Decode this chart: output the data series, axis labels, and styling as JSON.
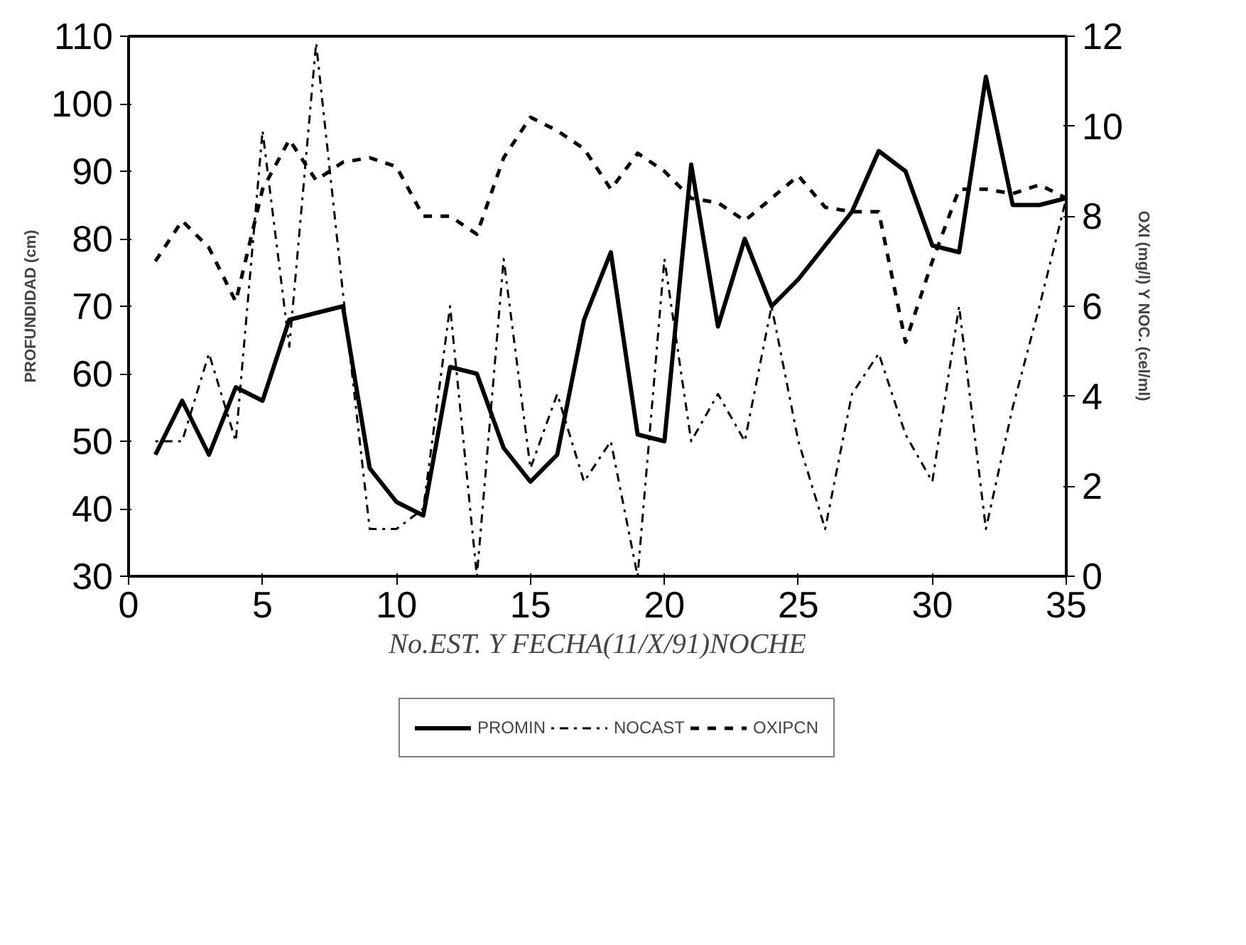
{
  "chart_data": {
    "type": "line",
    "xlabel": "No.EST. Y FECHA(11/X/91)NOCHE",
    "ylabel": "PROFUNDIDAD (cm)",
    "y2label": "OXI (mg/l) Y NOC. (cel/ml)",
    "x": [
      1,
      2,
      3,
      4,
      5,
      6,
      7,
      8,
      9,
      10,
      11,
      12,
      13,
      14,
      15,
      16,
      17,
      18,
      19,
      20,
      21,
      22,
      23,
      24,
      25,
      26,
      27,
      28,
      29,
      30,
      31,
      32,
      33,
      34,
      35
    ],
    "series": [
      {
        "name": "PROMIN",
        "color": "#000000",
        "line_style": "solid",
        "values": [
          48,
          56,
          48,
          58,
          56,
          68,
          69,
          70,
          46,
          41,
          39,
          61,
          60,
          49,
          44,
          48,
          68,
          78,
          51,
          50,
          91,
          67,
          80,
          70,
          74,
          79,
          84,
          93,
          90,
          79,
          78,
          104,
          85,
          85,
          86
        ]
      },
      {
        "name": "NOCAST",
        "color": "#000000",
        "line_style": "dotted",
        "values": [
          50,
          50,
          63,
          50,
          96,
          64,
          109,
          72,
          37,
          37,
          40,
          70,
          30,
          77,
          46,
          57,
          44,
          50,
          30,
          77,
          50,
          57,
          50,
          70,
          50,
          37,
          57,
          63,
          51,
          44,
          70,
          37,
          55,
          70,
          86
        ]
      },
      {
        "name": "OXIPCN",
        "color": "#000000",
        "line_style": "dashed",
        "axis": "y2",
        "values": [
          7.0,
          7.9,
          7.3,
          6.1,
          8.6,
          9.7,
          8.8,
          9.2,
          9.3,
          9.1,
          8.0,
          8.0,
          7.6,
          9.3,
          10.2,
          9.9,
          9.5,
          8.6,
          9.4,
          9.0,
          8.4,
          8.3,
          7.9,
          8.4,
          8.9,
          8.2,
          8.1,
          8.1,
          5.2,
          7.0,
          8.6,
          8.6,
          8.5,
          8.7,
          8.4
        ]
      }
    ],
    "xlim": [
      0,
      35
    ],
    "xticks": [
      0,
      5,
      10,
      15,
      20,
      25,
      30,
      35
    ],
    "ylim": [
      30,
      110
    ],
    "yticks": [
      30,
      40,
      50,
      60,
      70,
      80,
      90,
      100,
      110
    ],
    "y2lim": [
      0,
      12
    ],
    "y2ticks": [
      0,
      2,
      4,
      6,
      8,
      10,
      12
    ],
    "grid": false,
    "legend": "bottom",
    "marker": "none"
  }
}
